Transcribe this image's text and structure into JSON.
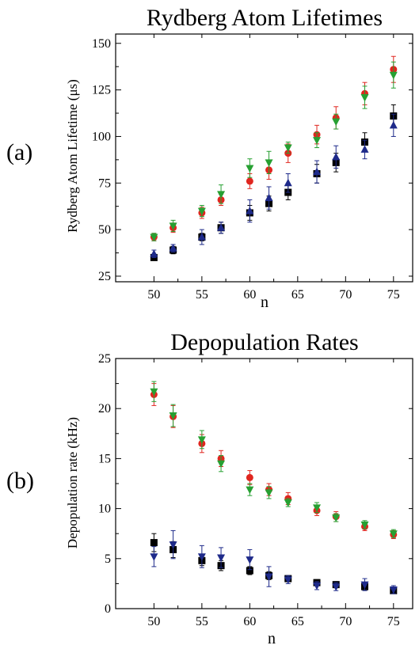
{
  "chart_data": [
    {
      "type": "scatter",
      "panel_label": "(a)",
      "title": "Rydberg Atom Lifetimes",
      "xlabel": "n",
      "ylabel": "Rydberg Atom Lifetime (μs)",
      "xlim": [
        46,
        77
      ],
      "ylim": [
        22,
        155
      ],
      "xticks": [
        50,
        55,
        60,
        65,
        70,
        75
      ],
      "yticks": [
        25,
        50,
        75,
        100,
        125,
        150
      ],
      "grid": false,
      "series": [
        {
          "marker": "square",
          "color": "#000000",
          "points": [
            {
              "x": 50,
              "y": 35,
              "err": 1.5
            },
            {
              "x": 52,
              "y": 39,
              "err": 2
            },
            {
              "x": 55,
              "y": 46,
              "err": 2
            },
            {
              "x": 57,
              "y": 51,
              "err": 3
            },
            {
              "x": 60,
              "y": 59,
              "err": 4
            },
            {
              "x": 62,
              "y": 64,
              "err": 4
            },
            {
              "x": 64,
              "y": 70,
              "err": 4
            },
            {
              "x": 67,
              "y": 80,
              "err": 5
            },
            {
              "x": 69,
              "y": 86,
              "err": 5
            },
            {
              "x": 72,
              "y": 97,
              "err": 5
            },
            {
              "x": 75,
              "y": 111,
              "err": 6
            }
          ]
        },
        {
          "marker": "circle",
          "color": "#e0261f",
          "points": [
            {
              "x": 50,
              "y": 46,
              "err": 2
            },
            {
              "x": 52,
              "y": 51,
              "err": 2.5
            },
            {
              "x": 55,
              "y": 59,
              "err": 3
            },
            {
              "x": 57,
              "y": 66,
              "err": 3
            },
            {
              "x": 60,
              "y": 76,
              "err": 4
            },
            {
              "x": 62,
              "y": 82,
              "err": 5
            },
            {
              "x": 64,
              "y": 91,
              "err": 5
            },
            {
              "x": 67,
              "y": 101,
              "err": 5
            },
            {
              "x": 69,
              "y": 110,
              "err": 6
            },
            {
              "x": 72,
              "y": 123,
              "err": 6
            },
            {
              "x": 75,
              "y": 136,
              "err": 7
            }
          ]
        },
        {
          "marker": "triangle-up",
          "color": "#1e2a8a",
          "points": [
            {
              "x": 50,
              "y": 37,
              "err": 2
            },
            {
              "x": 52,
              "y": 40,
              "err": 2
            },
            {
              "x": 55,
              "y": 46,
              "err": 4
            },
            {
              "x": 57,
              "y": 51,
              "err": 3
            },
            {
              "x": 60,
              "y": 60,
              "err": 6
            },
            {
              "x": 62,
              "y": 67,
              "err": 6
            },
            {
              "x": 64,
              "y": 75,
              "err": 5
            },
            {
              "x": 67,
              "y": 81,
              "err": 6
            },
            {
              "x": 69,
              "y": 89,
              "err": 6
            },
            {
              "x": 72,
              "y": 93,
              "err": 5
            },
            {
              "x": 75,
              "y": 106,
              "err": 6
            }
          ]
        },
        {
          "marker": "triangle-down",
          "color": "#27a032",
          "points": [
            {
              "x": 50,
              "y": 46,
              "err": 2
            },
            {
              "x": 52,
              "y": 52,
              "err": 3
            },
            {
              "x": 55,
              "y": 60,
              "err": 3
            },
            {
              "x": 57,
              "y": 69,
              "err": 5
            },
            {
              "x": 60,
              "y": 83,
              "err": 5
            },
            {
              "x": 62,
              "y": 86,
              "err": 6
            },
            {
              "x": 64,
              "y": 94,
              "err": 3
            },
            {
              "x": 67,
              "y": 98,
              "err": 4
            },
            {
              "x": 69,
              "y": 108,
              "err": 4
            },
            {
              "x": 72,
              "y": 121,
              "err": 6
            },
            {
              "x": 75,
              "y": 133,
              "err": 7
            }
          ]
        }
      ]
    },
    {
      "type": "scatter",
      "panel_label": "(b)",
      "title": "Depopulation Rates",
      "xlabel": "n",
      "ylabel": "Depopulation rate (kHz)",
      "xlim": [
        46,
        77
      ],
      "ylim": [
        0,
        25
      ],
      "xticks": [
        50,
        55,
        60,
        65,
        70,
        75
      ],
      "yticks": [
        0,
        5,
        10,
        15,
        20,
        25
      ],
      "grid": false,
      "series": [
        {
          "marker": "square",
          "color": "#000000",
          "points": [
            {
              "x": 50,
              "y": 6.6,
              "err": 0.9
            },
            {
              "x": 52,
              "y": 5.9,
              "err": 0.8
            },
            {
              "x": 55,
              "y": 4.8,
              "err": 0.5
            },
            {
              "x": 57,
              "y": 4.3,
              "err": 0.5
            },
            {
              "x": 60,
              "y": 3.8,
              "err": 0.4
            },
            {
              "x": 62,
              "y": 3.3,
              "err": 0.4
            },
            {
              "x": 64,
              "y": 3.0,
              "err": 0.3
            },
            {
              "x": 67,
              "y": 2.6,
              "err": 0.3
            },
            {
              "x": 69,
              "y": 2.4,
              "err": 0.3
            },
            {
              "x": 72,
              "y": 2.2,
              "err": 0.3
            },
            {
              "x": 75,
              "y": 1.8,
              "err": 0.2
            }
          ]
        },
        {
          "marker": "circle",
          "color": "#e0261f",
          "points": [
            {
              "x": 50,
              "y": 21.4,
              "err": 1.1
            },
            {
              "x": 52,
              "y": 19.2,
              "err": 1.1
            },
            {
              "x": 55,
              "y": 16.5,
              "err": 0.9
            },
            {
              "x": 57,
              "y": 15.0,
              "err": 0.8
            },
            {
              "x": 60,
              "y": 13.1,
              "err": 0.7
            },
            {
              "x": 62,
              "y": 11.9,
              "err": 0.6
            },
            {
              "x": 64,
              "y": 11.0,
              "err": 0.6
            },
            {
              "x": 67,
              "y": 9.8,
              "err": 0.5
            },
            {
              "x": 69,
              "y": 9.2,
              "err": 0.5
            },
            {
              "x": 72,
              "y": 8.2,
              "err": 0.4
            },
            {
              "x": 75,
              "y": 7.4,
              "err": 0.4
            }
          ]
        },
        {
          "marker": "triangle-down",
          "color": "#1e2a8a",
          "points": [
            {
              "x": 50,
              "y": 5.2,
              "err": 1.0
            },
            {
              "x": 52,
              "y": 6.4,
              "err": 1.4
            },
            {
              "x": 55,
              "y": 5.2,
              "err": 1.1
            },
            {
              "x": 57,
              "y": 5.1,
              "err": 1.0
            },
            {
              "x": 60,
              "y": 4.9,
              "err": 1.0
            },
            {
              "x": 62,
              "y": 3.2,
              "err": 1.0
            },
            {
              "x": 64,
              "y": 2.9,
              "err": 0.4
            },
            {
              "x": 67,
              "y": 2.3,
              "err": 0.4
            },
            {
              "x": 69,
              "y": 2.2,
              "err": 0.4
            },
            {
              "x": 72,
              "y": 2.4,
              "err": 0.6
            },
            {
              "x": 75,
              "y": 1.9,
              "err": 0.4
            }
          ]
        },
        {
          "marker": "triangle-down",
          "color": "#27a032",
          "points": [
            {
              "x": 50,
              "y": 21.7,
              "err": 1.0
            },
            {
              "x": 52,
              "y": 19.3,
              "err": 1.1
            },
            {
              "x": 55,
              "y": 16.9,
              "err": 0.9
            },
            {
              "x": 57,
              "y": 14.5,
              "err": 0.8
            },
            {
              "x": 60,
              "y": 11.9,
              "err": 0.6
            },
            {
              "x": 62,
              "y": 11.6,
              "err": 0.6
            },
            {
              "x": 64,
              "y": 10.6,
              "err": 0.4
            },
            {
              "x": 67,
              "y": 10.1,
              "err": 0.5
            },
            {
              "x": 69,
              "y": 9.1,
              "err": 0.4
            },
            {
              "x": 72,
              "y": 8.4,
              "err": 0.4
            },
            {
              "x": 75,
              "y": 7.5,
              "err": 0.4
            }
          ]
        }
      ]
    }
  ]
}
